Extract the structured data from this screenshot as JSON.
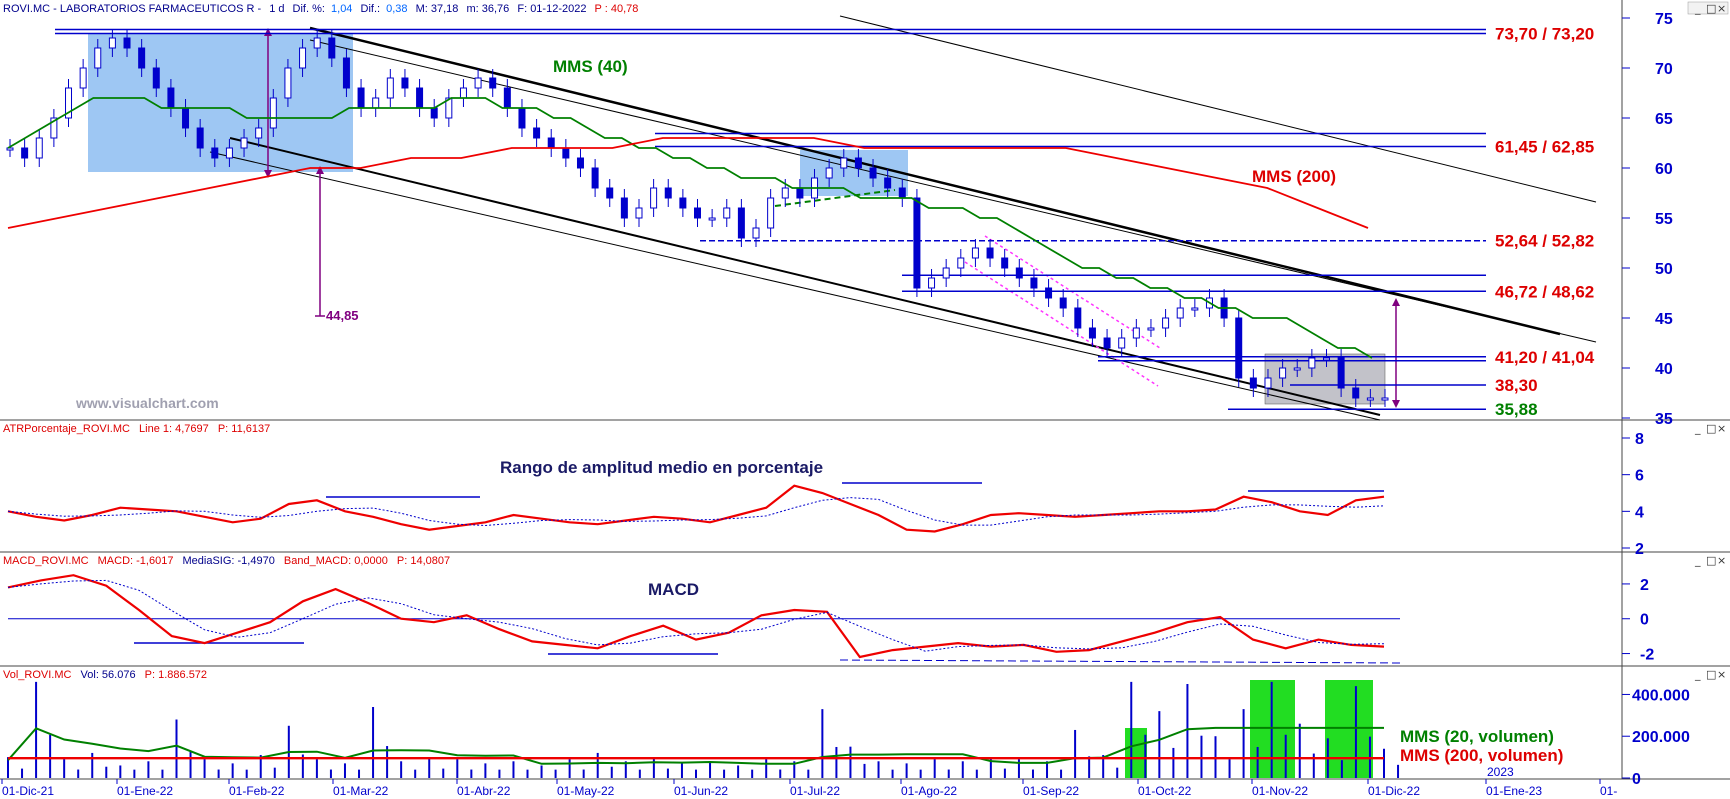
{
  "chart_data": [
    {
      "type": "line",
      "panel": "price",
      "header": {
        "symbol": "ROVI.MC - LABORATORIOS FARMACEUTICOS R -",
        "period": "1 d",
        "dif_pct_label": "Dif. %:",
        "dif_pct": "1,04",
        "dif_label": "Dif.:",
        "dif": "0,38",
        "max": "M: 37,18",
        "min": "m: 36,76",
        "date": "F: 01-12-2022",
        "price": "P : 40,78"
      },
      "yticks": [
        35,
        40,
        45,
        50,
        55,
        60,
        65,
        70,
        75
      ],
      "ytick_labels": [
        "35",
        "40",
        "45",
        "50",
        "55",
        "60",
        "65",
        "70",
        "75"
      ],
      "ylim": [
        35,
        75
      ],
      "x_labels": [
        "01-Dic-21",
        "01-Ene-22",
        "01-Feb-22",
        "01-Mar-22",
        "01-Abr-22",
        "01-May-22",
        "01-Jun-22",
        "01-Jul-22",
        "01-Ago-22",
        "01-Sep-22",
        "01-Oct-22",
        "01-Nov-22",
        "01-Dic-22",
        "01-Ene-23",
        "01-"
      ],
      "year_marker": "2023",
      "close": [
        62,
        61,
        63,
        65,
        68,
        70,
        72,
        73,
        72,
        70,
        68,
        66,
        64,
        62,
        61,
        62,
        63,
        64,
        67,
        70,
        72,
        73,
        71,
        68,
        66,
        67,
        69,
        68,
        66,
        65,
        67,
        68,
        69,
        68,
        66,
        64,
        63,
        62,
        61,
        60,
        58,
        57,
        55,
        56,
        58,
        57,
        56,
        55,
        55,
        56,
        53,
        54,
        57,
        58,
        57,
        59,
        60,
        61,
        60,
        59,
        58,
        57,
        48,
        49,
        50,
        51,
        52,
        51,
        50,
        49,
        48,
        47,
        46,
        44,
        43,
        42,
        43,
        44,
        44,
        45,
        46,
        46,
        47,
        45,
        39,
        38,
        39,
        40,
        40,
        41,
        41,
        38,
        37,
        37,
        37
      ],
      "series": [
        {
          "name": "MMS (40)",
          "color": "#008000",
          "values": [
            62,
            63,
            64,
            65,
            66,
            67,
            67,
            67,
            67,
            66,
            66,
            66,
            66,
            66,
            65,
            65,
            65,
            65,
            65,
            65,
            66,
            66,
            66,
            66,
            66,
            66,
            67,
            67,
            67,
            66,
            66,
            66,
            65,
            65,
            64,
            63,
            63,
            62,
            62,
            61,
            61,
            60,
            60,
            59,
            59,
            59,
            58,
            58,
            58,
            58,
            57,
            57,
            57,
            57,
            56,
            56,
            56,
            55,
            55,
            54,
            53,
            52,
            51,
            50,
            50,
            49,
            49,
            48,
            48,
            47,
            47,
            46,
            46,
            45,
            45,
            45,
            44,
            43,
            42,
            42,
            41
          ]
        },
        {
          "name": "MMS (200)",
          "color": "#ee0000",
          "values": [
            54,
            55,
            56,
            57,
            58,
            59,
            60,
            60,
            61,
            61,
            62,
            62,
            62,
            63,
            63,
            63,
            63,
            62,
            62,
            62,
            62,
            62,
            61,
            60,
            59,
            58,
            56,
            54
          ]
        }
      ],
      "levels": [
        {
          "label": "73,70 / 73,20",
          "value": 73.45,
          "color": "#dd0000"
        },
        {
          "label": "61,45 / 62,85",
          "value": 62.15,
          "color": "#dd0000"
        },
        {
          "label": "52,64 / 52,82",
          "value": 52.73,
          "color": "#dd0000"
        },
        {
          "label": "46,72 / 48,62",
          "value": 47.67,
          "color": "#dd0000"
        },
        {
          "label": "41,20 / 41,04",
          "value": 41.12,
          "color": "#dd0000"
        },
        {
          "label": "38,30",
          "value": 38.3,
          "color": "#dd0000"
        },
        {
          "label": "35,88",
          "value": 35.88,
          "color": "#008000"
        }
      ],
      "annotations": {
        "mms40": "MMS (40)",
        "mms200": "MMS (200)",
        "target": "44,85",
        "watermark": "www.visualchart.com"
      }
    },
    {
      "type": "line",
      "panel": "atr",
      "header": {
        "name": "ATRPorcentaje_ROVI.MC",
        "line": "Line 1: 4,7697",
        "p": "P: 11,6137"
      },
      "title": "Rango de amplitud medio en porcentaje",
      "yticks": [
        2,
        4,
        6,
        8
      ],
      "ylim": [
        2,
        8
      ],
      "series": [
        {
          "name": "Line 1",
          "color": "#ee0000",
          "values": [
            4,
            3.7,
            3.5,
            3.8,
            4.2,
            4.1,
            4,
            3.7,
            3.4,
            3.6,
            4.4,
            4.6,
            4,
            3.7,
            3.3,
            3,
            3.2,
            3.4,
            3.8,
            3.6,
            3.4,
            3.3,
            3.5,
            3.7,
            3.6,
            3.4,
            3.8,
            4.2,
            5.4,
            5,
            4.4,
            3.8,
            3,
            2.9,
            3.3,
            3.8,
            3.9,
            3.8,
            3.7,
            3.8,
            3.9,
            4,
            4,
            4.1,
            4.8,
            4.5,
            4,
            3.8,
            4.6,
            4.8
          ]
        }
      ]
    },
    {
      "type": "line",
      "panel": "macd",
      "header": {
        "name": "MACD_ROVI.MC",
        "macd": "MACD: -1,6017",
        "signal": "MediaSIG: -1,4970",
        "band": "Band_MACD: 0,0000",
        "p": "P: 14,0807"
      },
      "title": "MACD",
      "yticks": [
        -2,
        0,
        2
      ],
      "ylim": [
        -2.6,
        2.8
      ],
      "series": [
        {
          "name": "MACD",
          "color": "#ee0000",
          "values": [
            1.8,
            2.2,
            2.5,
            1.9,
            0.5,
            -1,
            -1.4,
            -0.8,
            -0.2,
            1,
            1.7,
            0.9,
            0,
            -0.2,
            0.2,
            -0.6,
            -1.3,
            -1.5,
            -1.7,
            -1,
            -0.4,
            -1.2,
            -0.8,
            0.2,
            0.5,
            0.4,
            -2.2,
            -1.8,
            -1.6,
            -1.4,
            -1.6,
            -1.5,
            -1.9,
            -1.8,
            -1.3,
            -0.8,
            -0.2,
            0.1,
            -1.2,
            -1.7,
            -1.2,
            -1.5,
            -1.6
          ]
        }
      ]
    },
    {
      "type": "bar",
      "panel": "volume",
      "header": {
        "name": "Vol_ROVI.MC",
        "vol": "Vol: 56.076",
        "p": "P: 1.886.572"
      },
      "yticks": [
        0,
        200000,
        400000
      ],
      "ytick_labels": [
        "0",
        "200.000",
        "400.000"
      ],
      "ylim": [
        0,
        450000
      ],
      "values": [
        100000,
        460000,
        90000,
        120000,
        60000,
        80000,
        280000,
        90000,
        70000,
        110000,
        250000,
        90000,
        70000,
        340000,
        80000,
        100000,
        90000,
        70000,
        80000,
        60000,
        90000,
        120000,
        80000,
        100000,
        70000,
        80000,
        60000,
        90000,
        80000,
        330000,
        150000,
        80000,
        70000,
        90000,
        80000,
        100000,
        90000,
        80000,
        230000,
        110000,
        460000,
        320000,
        450000,
        200000,
        330000,
        460000,
        260000,
        190000,
        440000,
        140000
      ],
      "series": [
        {
          "name": "MMS (20, volumen)",
          "color": "#008000"
        },
        {
          "name": "MMS (200, volumen)",
          "color": "#ee0000"
        }
      ]
    }
  ],
  "panel_buttons": [
    "_",
    "□",
    "×"
  ]
}
